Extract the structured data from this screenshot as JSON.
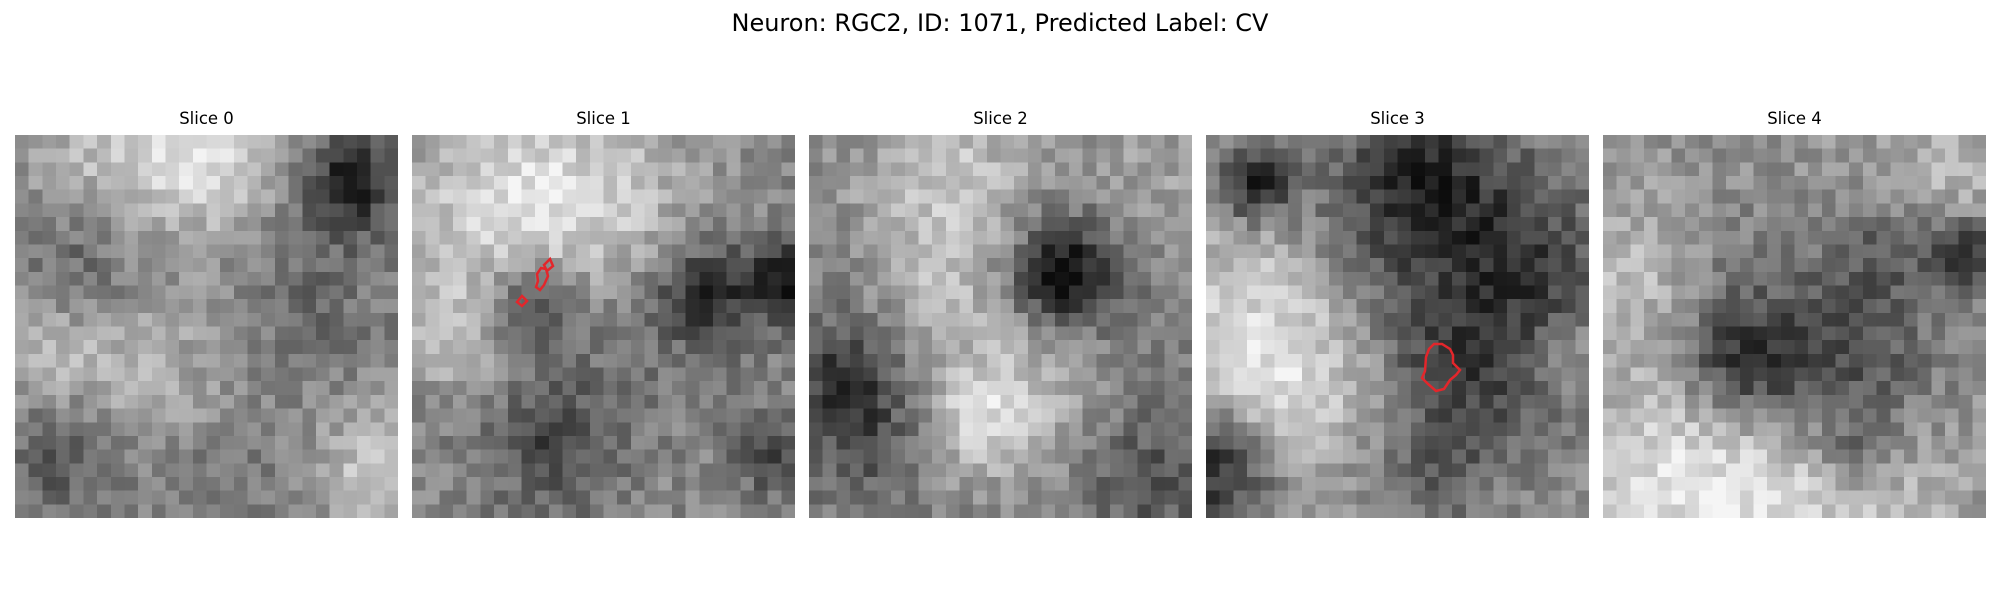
{
  "figure": {
    "title": "Neuron: RGC2, ID: 1071, Predicted Label: CV"
  },
  "colors": {
    "contour": "#e3262b",
    "background": "#ffffff"
  },
  "slices": [
    {
      "title": "Slice 0"
    },
    {
      "title": "Slice 1"
    },
    {
      "title": "Slice 2"
    },
    {
      "title": "Slice 3"
    },
    {
      "title": "Slice 4"
    }
  ]
}
